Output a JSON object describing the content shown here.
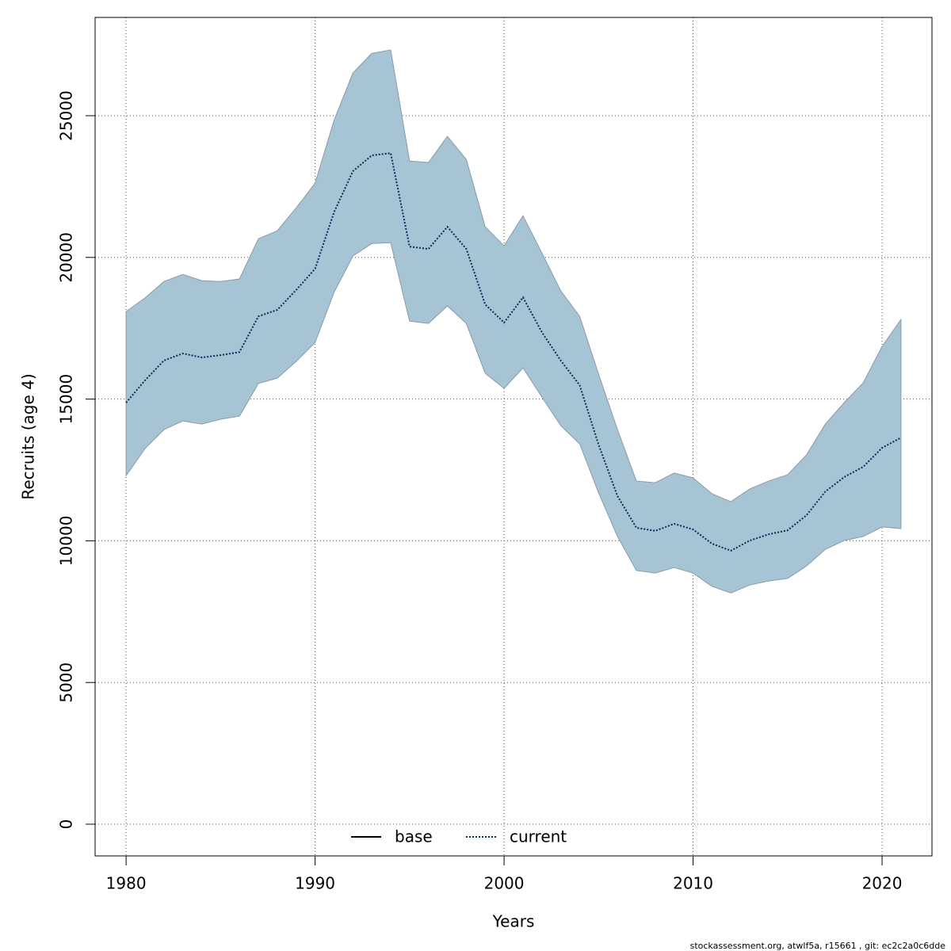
{
  "chart_data": {
    "type": "line",
    "xlabel": "Years",
    "ylabel": "Recruits (age 4)",
    "footer": "stockassessment.org, atwlf5a, r15661 , git: ec2c2a0c6dde",
    "x": [
      1980,
      1981,
      1982,
      1983,
      1984,
      1985,
      1986,
      1987,
      1988,
      1989,
      1990,
      1991,
      1992,
      1993,
      1994,
      1995,
      1996,
      1997,
      1998,
      1999,
      2000,
      2001,
      2002,
      2003,
      2004,
      2005,
      2006,
      2007,
      2008,
      2009,
      2010,
      2011,
      2012,
      2013,
      2014,
      2015,
      2016,
      2017,
      2018,
      2019,
      2020,
      2021
    ],
    "band": {
      "color": "#a6c4d4",
      "edge": "#8a9ba6",
      "lower": [
        12300,
        13250,
        13920,
        14230,
        14120,
        14290,
        14400,
        15550,
        15740,
        16330,
        17000,
        18760,
        20050,
        20490,
        20520,
        17750,
        17670,
        18290,
        17670,
        15910,
        15380,
        16100,
        15070,
        14060,
        13420,
        11690,
        10150,
        8950,
        8860,
        9060,
        8860,
        8390,
        8160,
        8440,
        8580,
        8670,
        9110,
        9700,
        10010,
        10150,
        10490,
        10430
      ],
      "upper": [
        18090,
        18570,
        19150,
        19400,
        19180,
        19150,
        19240,
        20660,
        20940,
        21750,
        22620,
        24830,
        26510,
        27200,
        27320,
        23400,
        23350,
        24270,
        23460,
        21080,
        20410,
        21470,
        20160,
        18820,
        17920,
        15880,
        13920,
        12110,
        12050,
        12390,
        12220,
        11660,
        11380,
        11830,
        12110,
        12330,
        13030,
        14120,
        14880,
        15570,
        16860,
        17810
      ]
    },
    "series": [
      {
        "name": "current",
        "color": "#00305a",
        "dash": "dotted",
        "values": [
          14875,
          15660,
          16360,
          16610,
          16470,
          16550,
          16660,
          17920,
          18150,
          18850,
          19600,
          21590,
          23040,
          23600,
          23680,
          20380,
          20300,
          21080,
          20300,
          18340,
          17700,
          18590,
          17360,
          16360,
          15490,
          13390,
          11580,
          10460,
          10350,
          10600,
          10400,
          9900,
          9650,
          10010,
          10230,
          10370,
          10900,
          11740,
          12250,
          12610,
          13280,
          13640
        ]
      }
    ],
    "legend": [
      {
        "name": "base",
        "color": "#000000",
        "dash": "solid"
      },
      {
        "name": "current",
        "color": "#00305a",
        "dash": "dotted"
      }
    ],
    "xlim": [
      1978.36,
      2022.64
    ],
    "xticks": [
      1980,
      1990,
      2000,
      2010,
      2020
    ],
    "ylim": [
      -1119,
      28468
    ],
    "yticks": [
      0,
      5000,
      10000,
      15000,
      20000,
      25000
    ],
    "grid": true
  }
}
